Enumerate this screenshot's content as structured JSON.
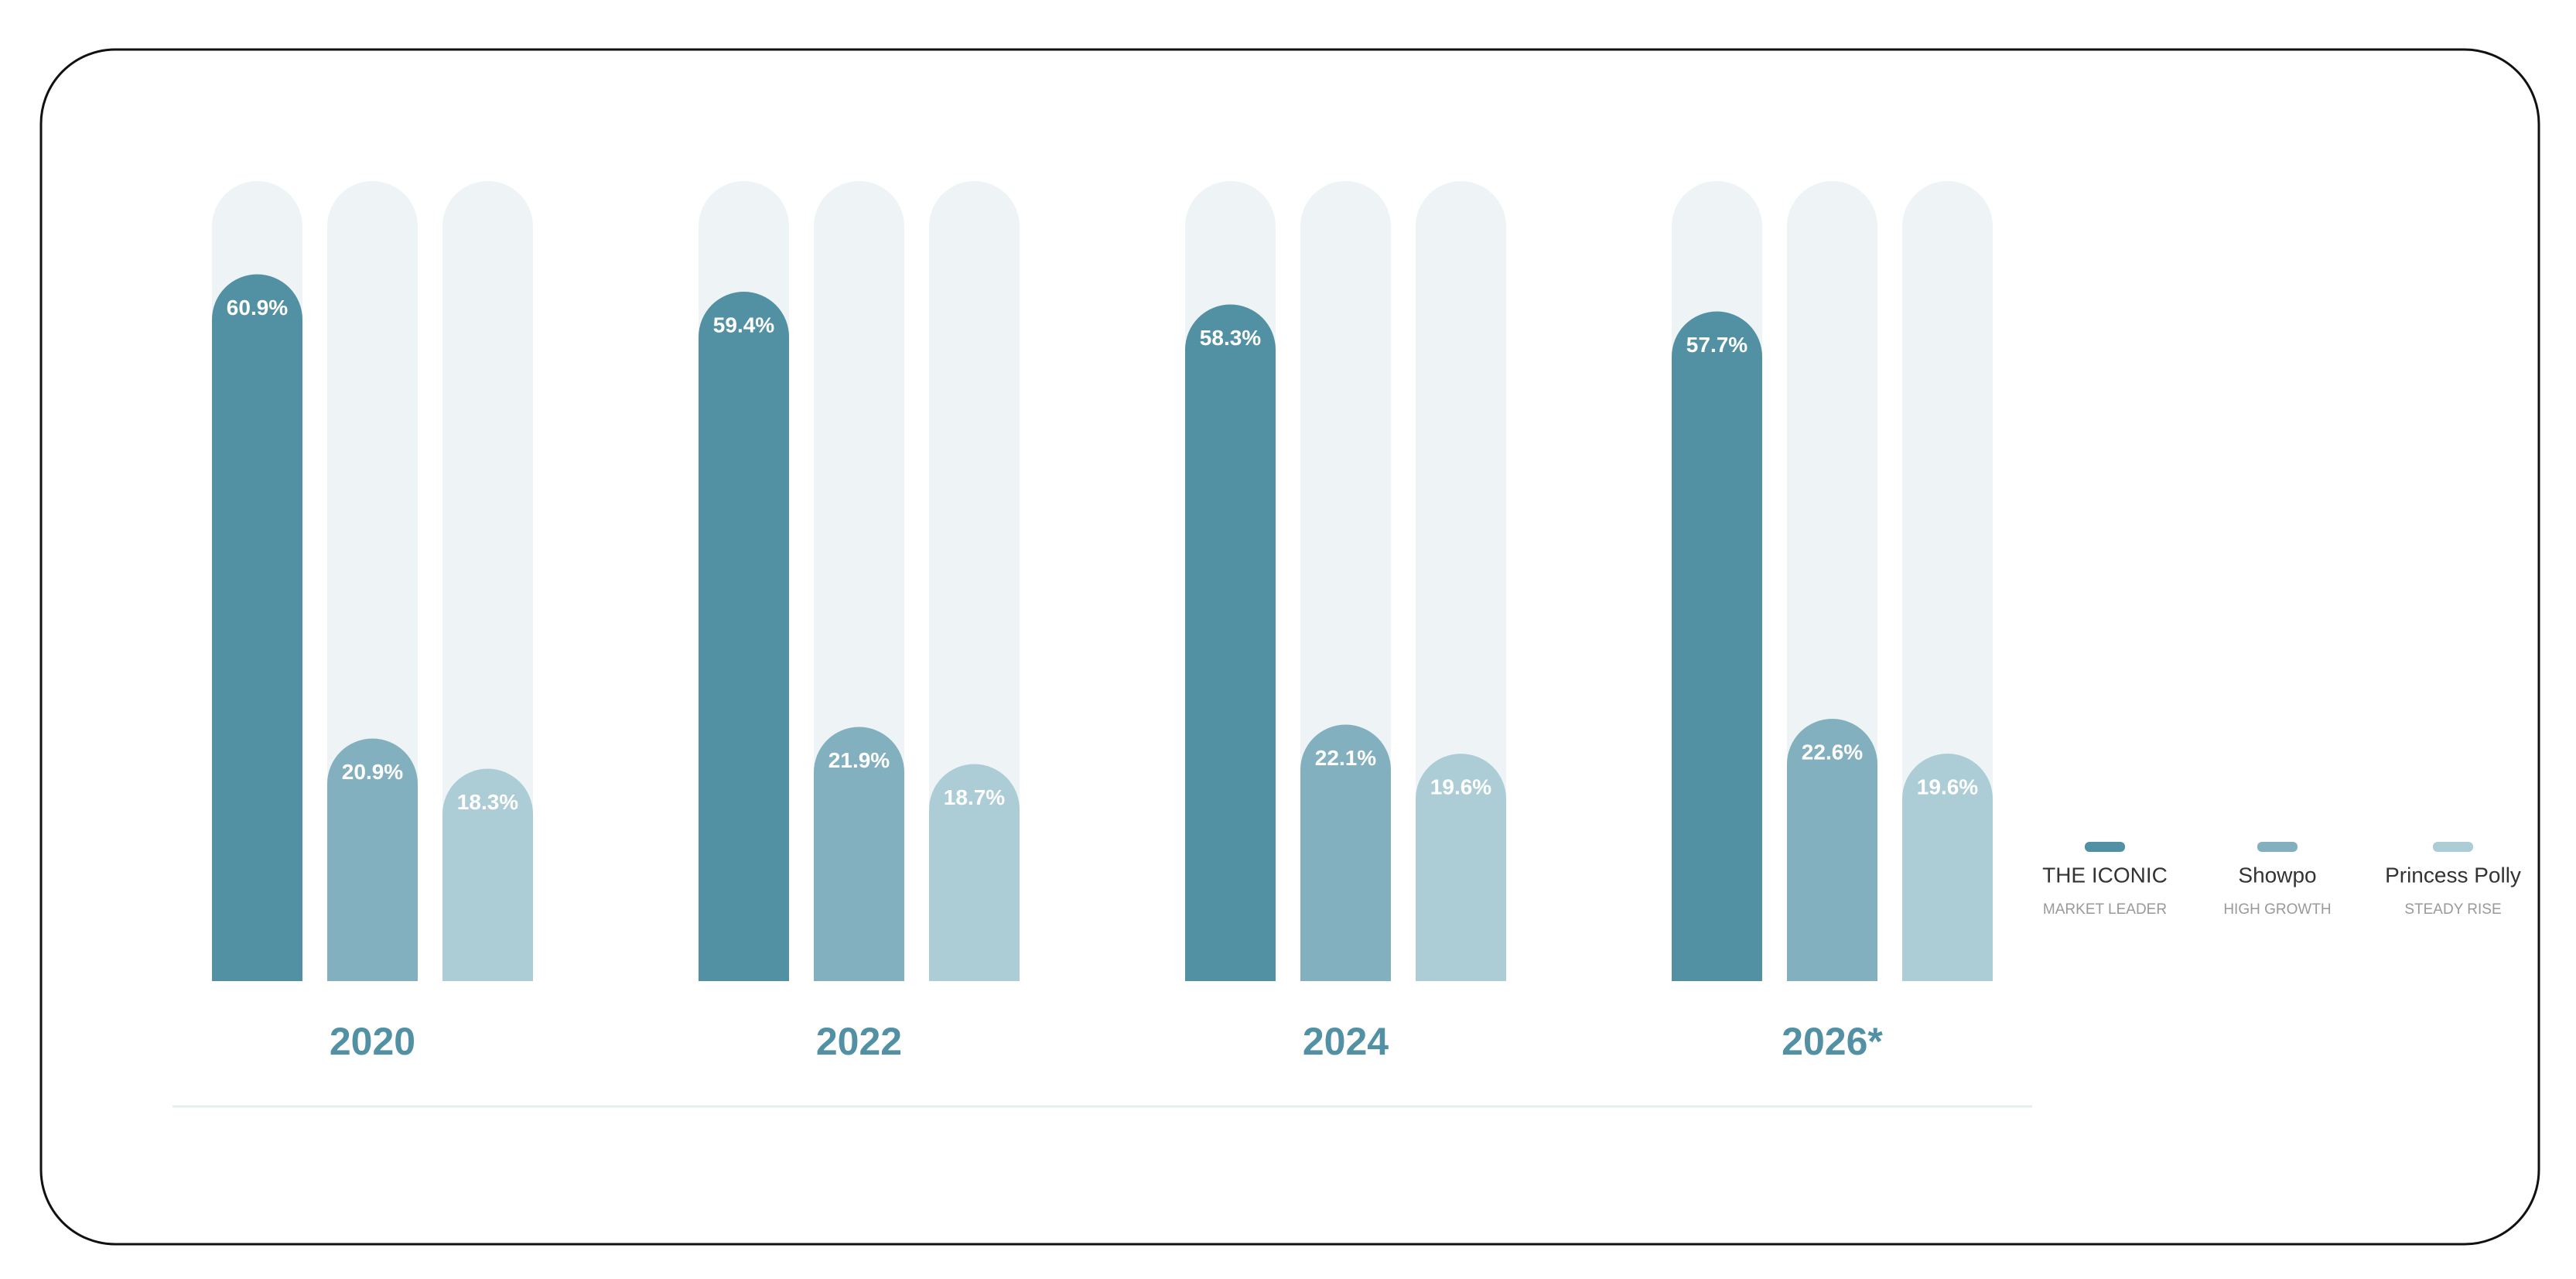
{
  "chart_data": {
    "type": "bar",
    "categories": [
      "2020",
      "2022",
      "2024",
      "2026*"
    ],
    "track_color": "#eef3f6",
    "series": [
      {
        "name": "THE ICONIC",
        "tagline": "MARKET LEADER",
        "color": "#5290a4",
        "values": [
          60.9,
          59.4,
          58.3,
          57.7
        ],
        "value_labels": [
          "60.9%",
          "59.4%",
          "58.3%",
          "57.7%"
        ]
      },
      {
        "name": "Showpo",
        "tagline": "HIGH GROWTH",
        "color": "#83b0bf",
        "values": [
          20.9,
          21.9,
          22.1,
          22.6
        ],
        "value_labels": [
          "20.9%",
          "21.9%",
          "22.1%",
          "22.6%"
        ]
      },
      {
        "name": "Princess Polly",
        "tagline": "STEADY RISE",
        "color": "#adcdd6",
        "values": [
          18.3,
          18.7,
          19.6,
          19.6
        ],
        "value_labels": [
          "18.3%",
          "18.7%",
          "19.6%",
          "19.6%"
        ]
      }
    ]
  }
}
